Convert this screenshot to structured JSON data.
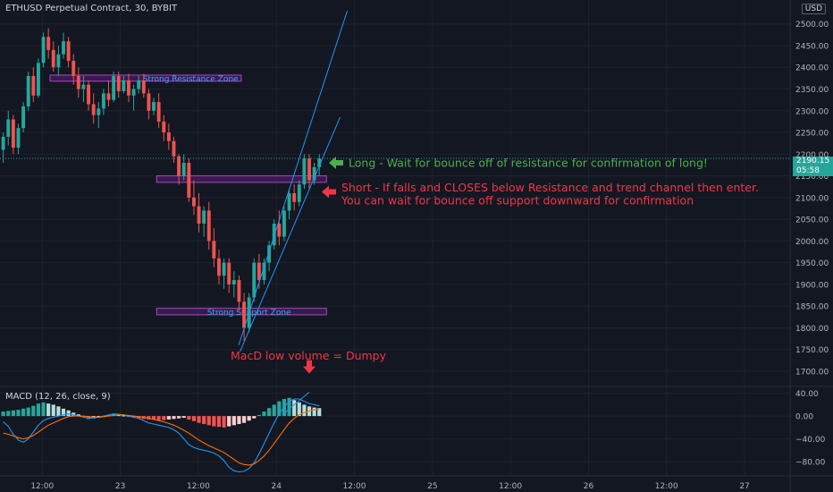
{
  "header": {
    "symbol_title": "ETHUSD Perpetual Contract, 30, BYBIT",
    "currency": "USD",
    "indicator_label": "MACD (12, 26, close, 9)"
  },
  "price_tag": {
    "price": "2190.15",
    "countdown": "05:58"
  },
  "colors": {
    "background": "#131722",
    "up": "#26a69a",
    "down": "#ef5350",
    "zone_fill": "#7b1fa2",
    "zone_text": "#42a5f5",
    "channel": "#2196f3",
    "annotation_long": "#4caf50",
    "annotation_short": "#f23645"
  },
  "annotations": {
    "resistance_zone": "Strong Resistance Zone",
    "support_zone": "Strong Support Zone",
    "long_note": "Long - Wait for bounce off of resistance for confirmation of long!",
    "short_note_line1": "Short - If falls and CLOSES below Resistance and trend channel then enter.",
    "short_note_line2": "You can wait for bounce off support downward for confirmation",
    "macd_note": "MacD low volume = Dumpy"
  },
  "chart_data": [
    {
      "type": "candlestick",
      "title": "ETHUSD Perpetual Contract, 30, BYBIT",
      "y_ticks": [
        1700,
        1750,
        1800,
        1850,
        1900,
        1950,
        2000,
        2050,
        2100,
        2150,
        2200,
        2250,
        2300,
        2350,
        2400,
        2450,
        2500
      ],
      "y_tick_labels": [
        "1700.00",
        "1750.00",
        "1800.00",
        "1850.00",
        "1900.00",
        "1950.00",
        "2000.00",
        "2050.00",
        "2100.00",
        "2150.00",
        "2200.00",
        "2250.00",
        "2300.00",
        "2350.00",
        "2400.00",
        "2450.00",
        "2500.00"
      ],
      "ylim": [
        1665,
        2555
      ],
      "x_ticks": [
        "12:00",
        "23",
        "12:00",
        "24",
        "12:00",
        "25",
        "12:00",
        "26",
        "12:00",
        "27"
      ],
      "x_tick_times": [
        12,
        24,
        36,
        48,
        60,
        72,
        84,
        96,
        108,
        120
      ],
      "time_range_hours": [
        5.5,
        127
      ],
      "last_price": 2190.15,
      "resistance_zone": [
        2368,
        2382
      ],
      "support_zone": [
        1830,
        1845
      ],
      "breakout_zone": [
        2135,
        2150
      ],
      "ohlc": [
        [
          2210,
          2250,
          2180,
          2240
        ],
        [
          2240,
          2300,
          2220,
          2280
        ],
        [
          2280,
          2290,
          2200,
          2215
        ],
        [
          2215,
          2270,
          2200,
          2260
        ],
        [
          2260,
          2320,
          2250,
          2310
        ],
        [
          2310,
          2390,
          2300,
          2380
        ],
        [
          2380,
          2400,
          2320,
          2335
        ],
        [
          2335,
          2420,
          2330,
          2410
        ],
        [
          2410,
          2480,
          2400,
          2470
        ],
        [
          2470,
          2490,
          2420,
          2440
        ],
        [
          2440,
          2460,
          2390,
          2400
        ],
        [
          2400,
          2450,
          2380,
          2430
        ],
        [
          2430,
          2480,
          2420,
          2460
        ],
        [
          2460,
          2470,
          2400,
          2415
        ],
        [
          2415,
          2430,
          2360,
          2380
        ],
        [
          2380,
          2400,
          2330,
          2350
        ],
        [
          2350,
          2380,
          2320,
          2360
        ],
        [
          2360,
          2370,
          2300,
          2315
        ],
        [
          2315,
          2340,
          2270,
          2290
        ],
        [
          2290,
          2320,
          2260,
          2305
        ],
        [
          2305,
          2350,
          2290,
          2340
        ],
        [
          2340,
          2370,
          2310,
          2325
        ],
        [
          2325,
          2390,
          2320,
          2380
        ],
        [
          2380,
          2390,
          2330,
          2345
        ],
        [
          2345,
          2380,
          2340,
          2370
        ],
        [
          2370,
          2385,
          2320,
          2335
        ],
        [
          2335,
          2360,
          2300,
          2350
        ],
        [
          2350,
          2380,
          2340,
          2370
        ],
        [
          2370,
          2385,
          2330,
          2340
        ],
        [
          2340,
          2350,
          2280,
          2300
        ],
        [
          2300,
          2330,
          2290,
          2320
        ],
        [
          2320,
          2340,
          2260,
          2275
        ],
        [
          2275,
          2290,
          2230,
          2250
        ],
        [
          2250,
          2270,
          2210,
          2230
        ],
        [
          2230,
          2240,
          2180,
          2195
        ],
        [
          2195,
          2200,
          2130,
          2150
        ],
        [
          2150,
          2200,
          2140,
          2180
        ],
        [
          2180,
          2190,
          2090,
          2100
        ],
        [
          2100,
          2140,
          2060,
          2080
        ],
        [
          2080,
          2110,
          2020,
          2040
        ],
        [
          2040,
          2080,
          2010,
          2070
        ],
        [
          2070,
          2090,
          1980,
          2000
        ],
        [
          2000,
          2030,
          1940,
          1960
        ],
        [
          1960,
          1980,
          1900,
          1920
        ],
        [
          1920,
          1960,
          1890,
          1950
        ],
        [
          1950,
          1960,
          1880,
          1900
        ],
        [
          1900,
          1930,
          1870,
          1910
        ],
        [
          1910,
          1920,
          1840,
          1860
        ],
        [
          1860,
          1880,
          1770,
          1800
        ],
        [
          1800,
          1880,
          1790,
          1870
        ],
        [
          1870,
          1960,
          1860,
          1950
        ],
        [
          1950,
          1970,
          1890,
          1910
        ],
        [
          1910,
          1960,
          1900,
          1950
        ],
        [
          1950,
          2000,
          1930,
          1990
        ],
        [
          1990,
          2050,
          1980,
          2040
        ],
        [
          2040,
          2070,
          1990,
          2010
        ],
        [
          2010,
          2080,
          2000,
          2070
        ],
        [
          2070,
          2120,
          2050,
          2110
        ],
        [
          2110,
          2130,
          2070,
          2090
        ],
        [
          2090,
          2140,
          2080,
          2130
        ],
        [
          2130,
          2200,
          2120,
          2190
        ],
        [
          2190,
          2200,
          2120,
          2140
        ],
        [
          2140,
          2180,
          2130,
          2170
        ],
        [
          2170,
          2200,
          2150,
          2190
        ]
      ]
    },
    {
      "type": "macd",
      "title": "MACD (12, 26, close, 9)",
      "y_ticks": [
        40,
        0,
        -40,
        -80
      ],
      "y_tick_labels": [
        "40.00",
        "0.00",
        "−40.00",
        "−80.00"
      ],
      "ylim": [
        -105,
        52
      ],
      "histogram": [
        8,
        9,
        10,
        11,
        13,
        15,
        18,
        22,
        24,
        22,
        20,
        17,
        13,
        10,
        6,
        3,
        -2,
        -5,
        -4,
        -3,
        -1,
        2,
        4,
        3,
        1,
        -1,
        -3,
        -4,
        -5,
        -6,
        -6,
        -7,
        -7,
        -6,
        -5,
        -4,
        -3,
        -6,
        -9,
        -12,
        -14,
        -16,
        -18,
        -19,
        -20,
        -18,
        -16,
        -14,
        -12,
        -8,
        -4,
        2,
        8,
        14,
        20,
        26,
        30,
        32,
        28,
        24,
        20,
        17,
        15,
        14
      ],
      "macd": [
        -10,
        -18,
        -32,
        -42,
        -46,
        -40,
        -28,
        -16,
        -8,
        -4,
        -2,
        0,
        2,
        4,
        2,
        0,
        -2,
        -4,
        -3,
        -2,
        0,
        2,
        4,
        3,
        2,
        0,
        -2,
        -4,
        -8,
        -12,
        -14,
        -16,
        -18,
        -20,
        -24,
        -30,
        -40,
        -50,
        -55,
        -58,
        -60,
        -62,
        -65,
        -70,
        -78,
        -90,
        -96,
        -98,
        -97,
        -92,
        -82,
        -66,
        -48,
        -30,
        -12,
        4,
        16,
        26,
        30,
        30,
        26,
        22,
        20,
        18
      ],
      "signal": [
        -30,
        -32,
        -35,
        -38,
        -40,
        -38,
        -34,
        -28,
        -22,
        -16,
        -12,
        -8,
        -4,
        -1,
        0,
        0,
        0,
        -1,
        -2,
        -2,
        -1,
        0,
        1,
        2,
        2,
        1,
        0,
        -1,
        -2,
        -4,
        -6,
        -8,
        -10,
        -13,
        -16,
        -20,
        -25,
        -30,
        -36,
        -42,
        -47,
        -52,
        -56,
        -60,
        -64,
        -70,
        -76,
        -82,
        -85,
        -86,
        -84,
        -78,
        -70,
        -60,
        -48,
        -36,
        -24,
        -12,
        -4,
        2,
        6,
        9,
        11,
        12
      ],
      "trend_arrow": {
        "from": [
          -7,
          5
        ],
        "to": [
          -2,
          42
        ]
      }
    }
  ]
}
